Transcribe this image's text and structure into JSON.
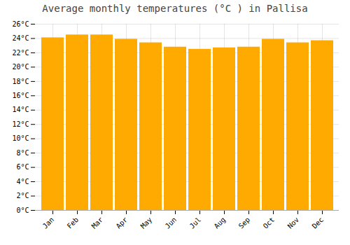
{
  "chart_data": {
    "type": "bar",
    "title": "Average monthly temperatures (°C ) in Pallisa",
    "categories": [
      "Jan",
      "Feb",
      "Mar",
      "Apr",
      "May",
      "Jun",
      "Jul",
      "Aug",
      "Sep",
      "Oct",
      "Nov",
      "Dec"
    ],
    "values": [
      24.1,
      24.5,
      24.5,
      23.9,
      23.4,
      22.8,
      22.5,
      22.7,
      22.8,
      23.9,
      23.4,
      23.7
    ],
    "color": "#FFAA00",
    "ylim": [
      0,
      26
    ],
    "yticks": [
      {
        "value": 0,
        "label": "0°C"
      },
      {
        "value": 2,
        "label": "2°C"
      },
      {
        "value": 4,
        "label": "4°C"
      },
      {
        "value": 6,
        "label": "6°C"
      },
      {
        "value": 8,
        "label": "8°C"
      },
      {
        "value": 10,
        "label": "10°C"
      },
      {
        "value": 12,
        "label": "12°C"
      },
      {
        "value": 14,
        "label": "14°C"
      },
      {
        "value": 16,
        "label": "16°C"
      },
      {
        "value": 18,
        "label": "18°C"
      },
      {
        "value": 20,
        "label": "20°C"
      },
      {
        "value": 22,
        "label": "22°C"
      },
      {
        "value": 24,
        "label": "24°C"
      },
      {
        "value": 26,
        "label": "26°C"
      }
    ],
    "grid": true
  }
}
